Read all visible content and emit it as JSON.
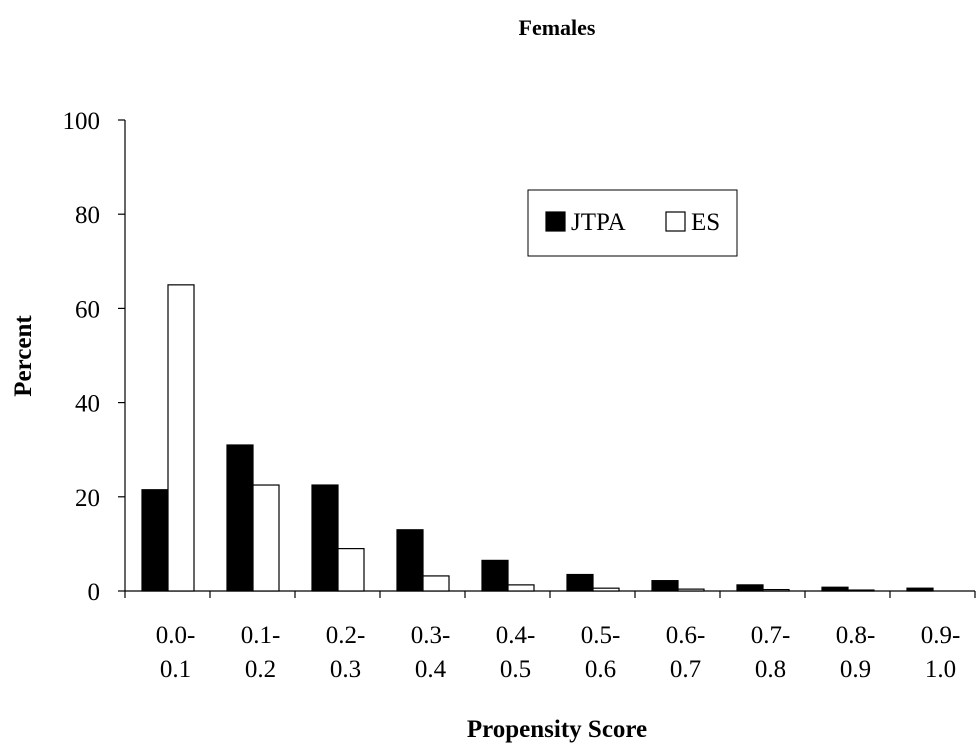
{
  "chart_data": {
    "type": "bar",
    "title": "Females",
    "xlabel": "Propensity Score",
    "ylabel": "Percent",
    "ylim": [
      0,
      100
    ],
    "yticks": [
      0,
      20,
      40,
      60,
      80,
      100
    ],
    "categories": [
      [
        "0.0-",
        "0.1"
      ],
      [
        "0.1-",
        "0.2"
      ],
      [
        "0.2-",
        "0.3"
      ],
      [
        "0.3-",
        "0.4"
      ],
      [
        "0.4-",
        "0.5"
      ],
      [
        "0.5-",
        "0.6"
      ],
      [
        "0.6-",
        "0.7"
      ],
      [
        "0.7-",
        "0.8"
      ],
      [
        "0.8-",
        "0.9"
      ],
      [
        "0.9-",
        "1.0"
      ]
    ],
    "series": [
      {
        "name": "JTPA",
        "color": "#000000",
        "values": [
          21.5,
          31,
          22.5,
          13,
          6.5,
          3.5,
          2.2,
          1.3,
          0.8,
          0.6
        ]
      },
      {
        "name": "ES",
        "color": "#ffffff",
        "values": [
          65,
          22.5,
          9,
          3.2,
          1.3,
          0.6,
          0.4,
          0.3,
          0.2,
          0
        ]
      }
    ],
    "grid": false,
    "legend": "upper-middle"
  }
}
